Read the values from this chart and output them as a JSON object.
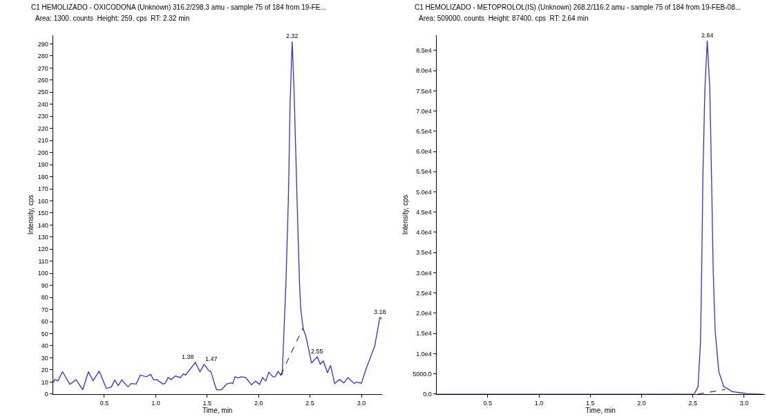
{
  "chart_data": [
    {
      "type": "line",
      "title": "C1 HEMOLIZADO - OXICODONA (Unknown) 316.2/298.3 amu - sample 75 of 184 from 19-FE...",
      "subtitle": "Area: 1300. counts  Height: 259. cps  RT: 2.32 min",
      "xlabel": "Time, min",
      "ylabel": "Intensity, cps",
      "xlim": [
        0,
        3.2
      ],
      "xticks": [
        0.5,
        {
          "value": 1,
          "label": "1.0"
        },
        1.5,
        {
          "value": 2,
          "label": "2.0"
        },
        2.5,
        {
          "value": 3,
          "label": "3.0"
        }
      ],
      "ylim": [
        0,
        297
      ],
      "yticks": [
        0,
        10,
        20,
        30,
        40,
        50,
        60,
        70,
        80,
        90,
        100,
        110,
        120,
        130,
        140,
        150,
        160,
        170,
        180,
        190,
        200,
        210,
        220,
        230,
        240,
        250,
        260,
        270,
        280,
        290
      ],
      "series": [
        {
          "color": "#2b2bff",
          "x": [
            0.005,
            0.017,
            0.05,
            0.093,
            0.165,
            0.225,
            0.29,
            0.345,
            0.39,
            0.45,
            0.52,
            0.57,
            0.6,
            0.635,
            0.67,
            0.73,
            0.76,
            0.81,
            0.85,
            0.91,
            0.95,
            0.98,
            1.01,
            1.07,
            1.09,
            1.12,
            1.15,
            1.19,
            1.24,
            1.27,
            1.29,
            1.385,
            1.43,
            1.47,
            1.52,
            1.535,
            1.59,
            1.64,
            1.69,
            1.73,
            1.75,
            1.77,
            1.8,
            1.83,
            1.875,
            1.93,
            1.97,
            2.01,
            2.04,
            2.07,
            2.1,
            2.14,
            2.16,
            2.19,
            2.215,
            2.23,
            2.266,
            2.29,
            2.307,
            2.327,
            2.345,
            2.374,
            2.398,
            2.41,
            2.434,
            2.46,
            2.515,
            2.57,
            2.6,
            2.63,
            2.67,
            2.7,
            2.74,
            2.785,
            2.83,
            2.87,
            2.93,
            2.95,
            3.0,
            3.05,
            3.13,
            3.18,
            3.2
          ],
          "values": [
            9.7,
            12,
            11,
            18.5,
            8,
            12,
            3.6,
            18.5,
            11,
            19,
            4.6,
            6,
            11.7,
            7,
            11.7,
            6,
            8.7,
            8.3,
            15.7,
            14.3,
            16.3,
            11.7,
            12,
            8.3,
            8.7,
            13.7,
            12,
            15,
            13.7,
            16.7,
            15.7,
            26.2,
            18.3,
            24.6,
            19,
            19,
            3.6,
            3.6,
            8.3,
            9.3,
            8.7,
            14.3,
            13.3,
            14.3,
            13.7,
            7.7,
            10.7,
            8,
            13.7,
            10.7,
            18.1,
            14.3,
            14.3,
            18.8,
            15.7,
            16.4,
            92,
            162,
            242,
            292,
            252,
            162,
            92,
            70.5,
            54,
            48,
            25.8,
            30.8,
            24.8,
            27.4,
            17.7,
            23.8,
            8.7,
            12,
            9.3,
            13.7,
            8.7,
            10,
            9,
            21.8,
            40,
            63.7,
            62
          ]
        },
        {
          "color": "#000000",
          "line_style": "dashed",
          "x": [
            2.215,
            2.434
          ],
          "values": [
            15.7,
            55
          ]
        }
      ],
      "annotations": [
        {
          "text": "2.32",
          "x": 2.327,
          "y": 292
        },
        {
          "text": "1.38",
          "x": 1.385,
          "y": 26.2
        },
        {
          "text": "1.47",
          "x": 1.47,
          "y": 24.6
        },
        {
          "text": "2.55",
          "x": 2.57,
          "y": 30.8
        },
        {
          "text": "3.18",
          "x": 3.18,
          "y": 63.7
        }
      ]
    },
    {
      "type": "line",
      "title": "C1 HEMOLIZADO - METOPROLOL(IS) (Unknown) 268.2/116.2 amu - sample 75 of 184 from 19-FEB-08...",
      "subtitle": "Area: 509000. counts  Height: 87400. cps  RT: 2.64 min",
      "xlabel": "Time, min",
      "ylabel": "Intensity, cps",
      "xlim": [
        0,
        3.2
      ],
      "xticks": [
        0.5,
        {
          "value": 1,
          "label": "1.0"
        },
        1.5,
        {
          "value": 2,
          "label": "2.0"
        },
        2.5,
        {
          "value": 3,
          "label": "3.0"
        }
      ],
      "ylim": [
        0,
        88700
      ],
      "yticks": [
        {
          "value": 0,
          "label": "0.0"
        },
        {
          "value": 5000,
          "label": "5000.0"
        },
        {
          "value": 10000,
          "label": "1.0e4"
        },
        {
          "value": 15000,
          "label": "1.5e4"
        },
        {
          "value": 20000,
          "label": "2.0e4"
        },
        {
          "value": 25000,
          "label": "2.5e4"
        },
        {
          "value": 30000,
          "label": "3.0e4"
        },
        {
          "value": 35000,
          "label": "3.5e4"
        },
        {
          "value": 40000,
          "label": "4.0e4"
        },
        {
          "value": 45000,
          "label": "4.5e4"
        },
        {
          "value": 50000,
          "label": "5.0e4"
        },
        {
          "value": 55000,
          "label": "5.5e4"
        },
        {
          "value": 60000,
          "label": "6.0e4"
        },
        {
          "value": 65000,
          "label": "6.5e4"
        },
        {
          "value": 70000,
          "label": "7.0e4"
        },
        {
          "value": 75000,
          "label": "7.5e4"
        },
        {
          "value": 80000,
          "label": "8.0e4"
        },
        {
          "value": 85000,
          "label": "8.5e4"
        }
      ],
      "series": [
        {
          "color": "#2b2bff",
          "x": [
            0.005,
            2.513,
            2.55,
            2.574,
            2.586,
            2.598,
            2.617,
            2.64,
            2.665,
            2.681,
            2.698,
            2.717,
            2.753,
            2.8,
            2.885,
            3.03,
            3.18
          ],
          "values": [
            0,
            0,
            1800,
            12700,
            30600,
            54500,
            75500,
            87400,
            75500,
            54500,
            30600,
            15700,
            5500,
            1900,
            600,
            100,
            0
          ]
        },
        {
          "color": "#000000",
          "line_style": "dashed",
          "x": [
            2.546,
            2.815
          ],
          "values": [
            0,
            1100
          ]
        }
      ],
      "annotations": [
        {
          "text": "2.64",
          "x": 2.64,
          "y": 87400
        }
      ]
    }
  ]
}
